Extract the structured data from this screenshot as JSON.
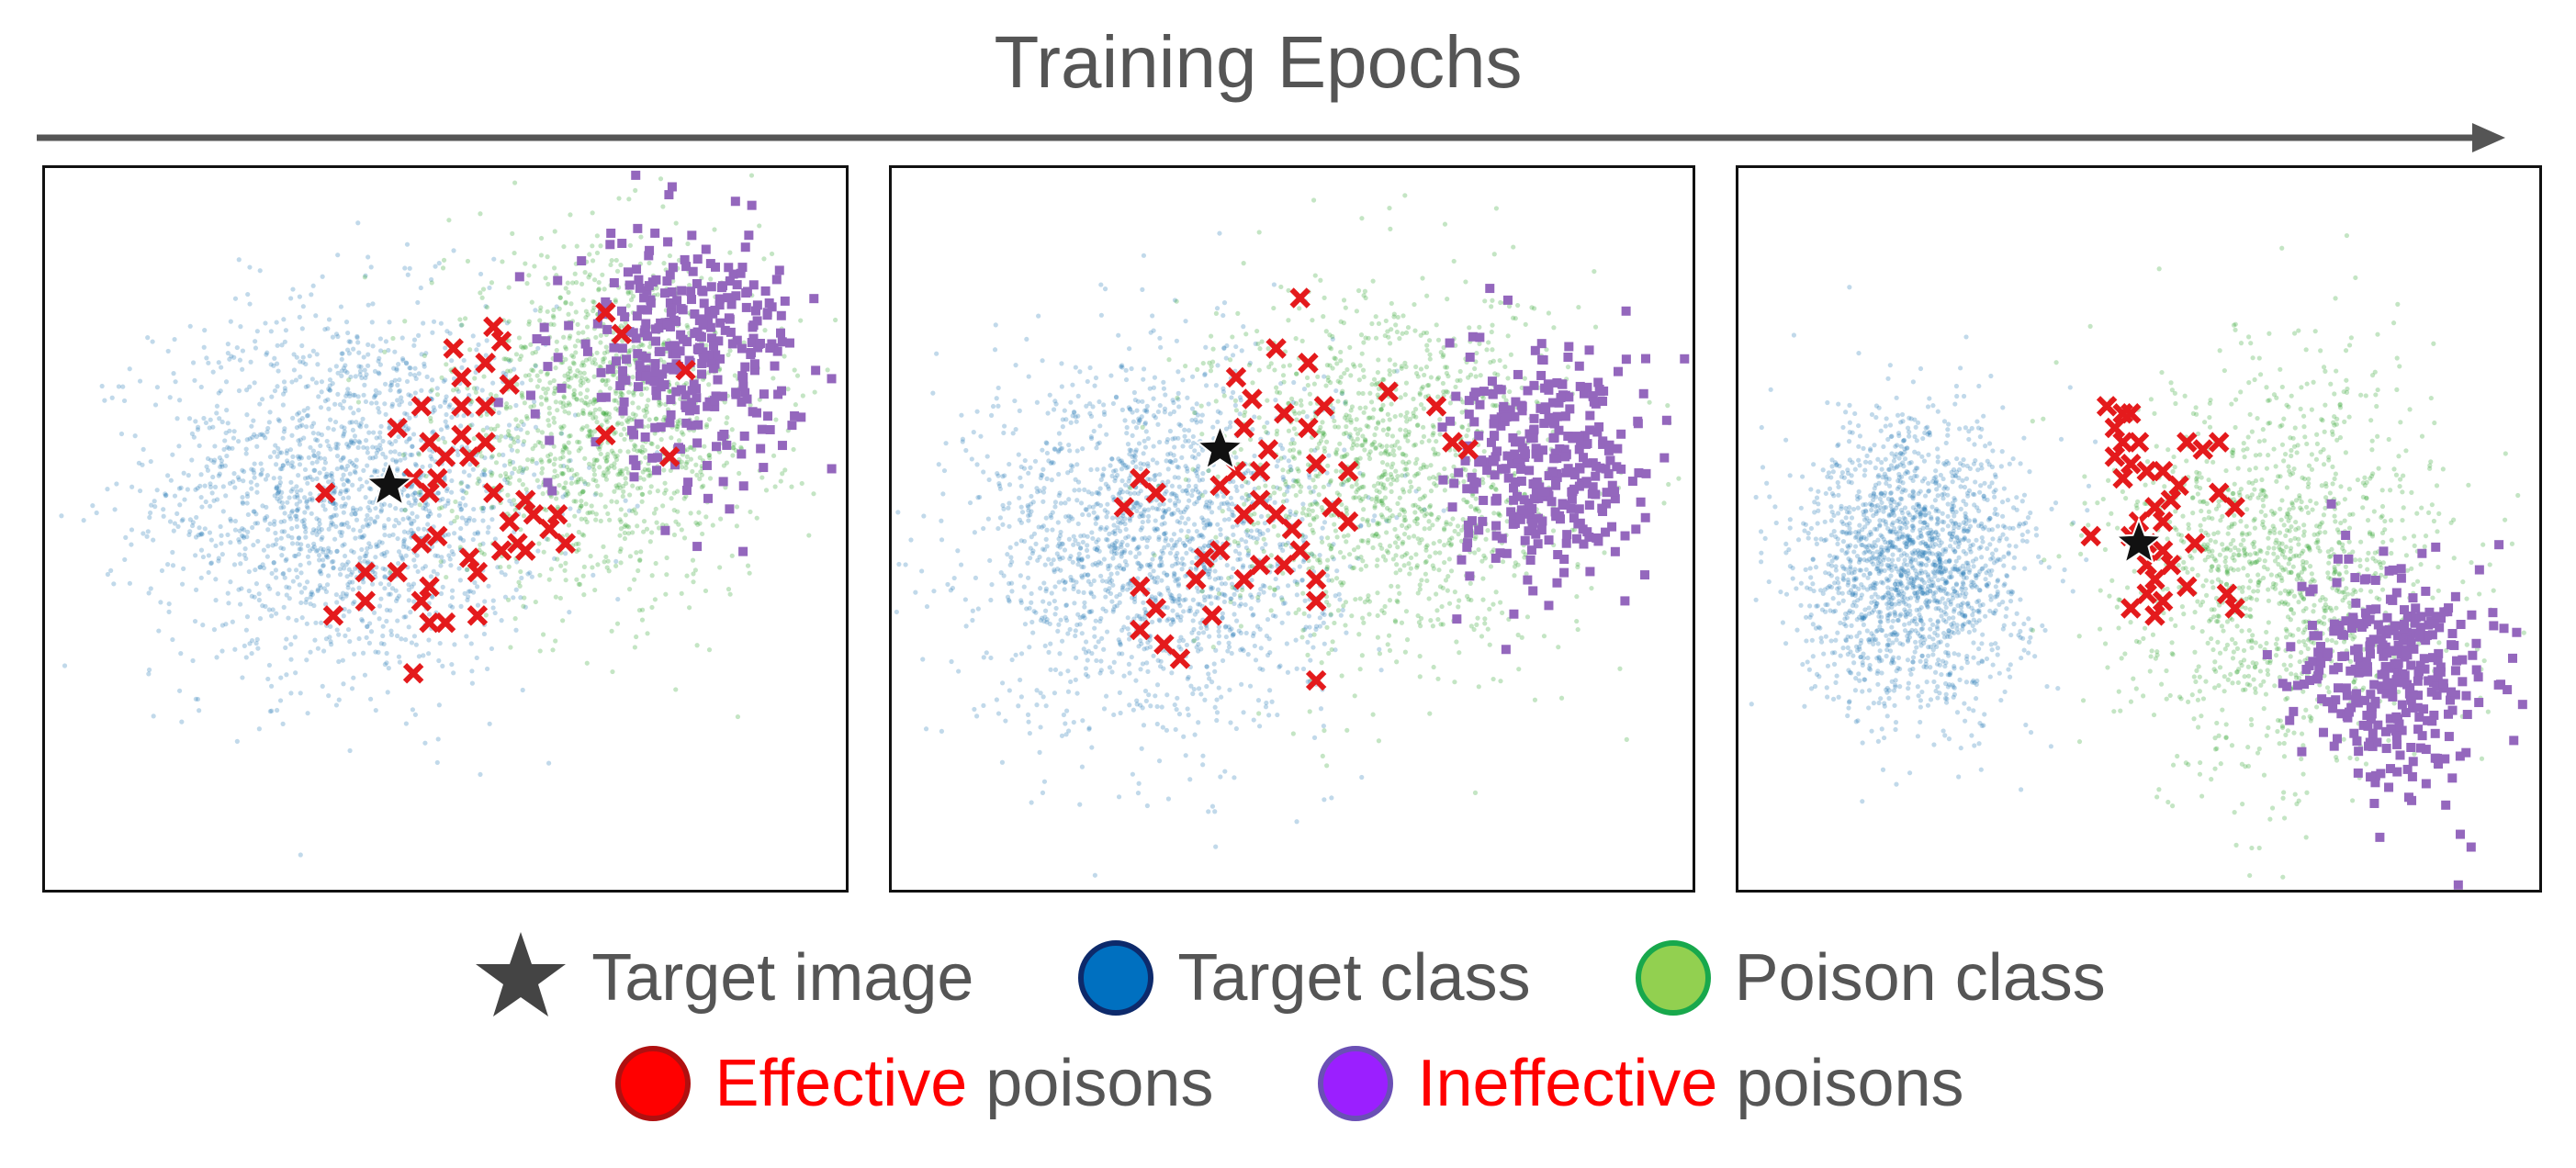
{
  "header": {
    "title": "Training Epochs"
  },
  "colors": {
    "target_class": "#1f77b4",
    "poison_class": "#2ca02c",
    "effective_poisons": "#e41a1c",
    "ineffective_poisons": "#9467bd",
    "target_image": "#111111",
    "highlight": "#ff0000",
    "text": "#555555"
  },
  "legend": {
    "target_image": "Target image",
    "target_class": "Target class",
    "poison_class": "Poison class",
    "effective_word": "Effective",
    "ineffective_word": "Ineffective",
    "poisons_word": "poisons"
  },
  "chart_data": [
    {
      "type": "scatter",
      "xlim": [
        0,
        100
      ],
      "ylim": [
        0,
        100
      ],
      "grid": false,
      "series": [
        {
          "name": "Target class",
          "marker": "dot",
          "clusters": [
            {
              "cx": 38,
              "cy": 55,
              "sx": 12,
              "sy": 13,
              "n": 1800
            }
          ]
        },
        {
          "name": "Poison class",
          "marker": "dot",
          "clusters": [
            {
              "cx": 70,
              "cy": 65,
              "sx": 10,
              "sy": 12,
              "n": 1300
            }
          ]
        },
        {
          "name": "Ineffective poisons",
          "marker": "square",
          "clusters": [
            {
              "cx": 80,
              "cy": 75,
              "sx": 7,
              "sy": 8,
              "n": 330
            }
          ]
        },
        {
          "name": "Effective poisons",
          "marker": "x",
          "points": [
            [
              56,
              78
            ],
            [
              57,
              76
            ],
            [
              51,
              75
            ],
            [
              55,
              73
            ],
            [
              52,
              71
            ],
            [
              58,
              70
            ],
            [
              47,
              67
            ],
            [
              52,
              67
            ],
            [
              55,
              67
            ],
            [
              52,
              63
            ],
            [
              48,
              62
            ],
            [
              55,
              62
            ],
            [
              50,
              60
            ],
            [
              53,
              60
            ],
            [
              46,
              57
            ],
            [
              49,
              57
            ],
            [
              48,
              55
            ],
            [
              56,
              55
            ],
            [
              60,
              54
            ],
            [
              61,
              52
            ],
            [
              58,
              51
            ],
            [
              64,
              52
            ],
            [
              63,
              50
            ],
            [
              59,
              48
            ],
            [
              57,
              47
            ],
            [
              60,
              47
            ],
            [
              49,
              49
            ],
            [
              47,
              48
            ],
            [
              53,
              46
            ],
            [
              54,
              44
            ],
            [
              40,
              44
            ],
            [
              44,
              44
            ],
            [
              48,
              42
            ],
            [
              47,
              40
            ],
            [
              48,
              37
            ],
            [
              50,
              37
            ],
            [
              40,
              40
            ],
            [
              36,
              38
            ],
            [
              46,
              30
            ],
            [
              54,
              38
            ],
            [
              35,
              55
            ],
            [
              44,
              64
            ],
            [
              70,
              80
            ],
            [
              72,
              77
            ],
            [
              80,
              72
            ],
            [
              78,
              60
            ],
            [
              70,
              63
            ],
            [
              65,
              48
            ]
          ]
        },
        {
          "name": "Target image",
          "marker": "star",
          "points": [
            [
              43,
              56
            ]
          ]
        }
      ]
    },
    {
      "type": "scatter",
      "xlim": [
        0,
        100
      ],
      "ylim": [
        0,
        100
      ],
      "grid": false,
      "series": [
        {
          "name": "Target class",
          "marker": "dot",
          "clusters": [
            {
              "cx": 33,
              "cy": 48,
              "sx": 11,
              "sy": 13,
              "n": 1800
            }
          ]
        },
        {
          "name": "Poison class",
          "marker": "dot",
          "clusters": [
            {
              "cx": 62,
              "cy": 58,
              "sx": 11,
              "sy": 13,
              "n": 1300
            }
          ]
        },
        {
          "name": "Ineffective poisons",
          "marker": "square",
          "clusters": [
            {
              "cx": 82,
              "cy": 58,
              "sx": 6,
              "sy": 8,
              "n": 330
            }
          ]
        },
        {
          "name": "Effective poisons",
          "marker": "x",
          "points": [
            [
              51,
              82
            ],
            [
              48,
              75
            ],
            [
              52,
              73
            ],
            [
              43,
              71
            ],
            [
              45,
              68
            ],
            [
              49,
              66
            ],
            [
              54,
              67
            ],
            [
              52,
              64
            ],
            [
              44,
              64
            ],
            [
              47,
              61
            ],
            [
              43,
              58
            ],
            [
              46,
              58
            ],
            [
              41,
              56
            ],
            [
              46,
              54
            ],
            [
              48,
              52
            ],
            [
              50,
              50
            ],
            [
              44,
              52
            ],
            [
              55,
              53
            ],
            [
              57,
              51
            ],
            [
              51,
              47
            ],
            [
              49,
              45
            ],
            [
              46,
              45
            ],
            [
              41,
              47
            ],
            [
              39,
              46
            ],
            [
              38,
              43
            ],
            [
              44,
              43
            ],
            [
              53,
              43
            ],
            [
              53,
              40
            ],
            [
              31,
              42
            ],
            [
              33,
              39
            ],
            [
              31,
              36
            ],
            [
              40,
              38
            ],
            [
              33,
              55
            ],
            [
              31,
              57
            ],
            [
              29,
              53
            ],
            [
              36,
              32
            ],
            [
              34,
              34
            ],
            [
              53,
              29
            ],
            [
              62,
              69
            ],
            [
              68,
              67
            ],
            [
              70,
              62
            ],
            [
              72,
              61
            ],
            [
              53,
              59
            ],
            [
              57,
              58
            ]
          ]
        },
        {
          "name": "Target image",
          "marker": "star",
          "points": [
            [
              41,
              61
            ]
          ]
        }
      ]
    },
    {
      "type": "scatter",
      "xlim": [
        0,
        100
      ],
      "ylim": [
        0,
        100
      ],
      "grid": false,
      "series": [
        {
          "name": "Target class",
          "marker": "dot",
          "clusters": [
            {
              "cx": 22,
              "cy": 45,
              "sx": 7,
              "sy": 10,
              "n": 1800
            }
          ]
        },
        {
          "name": "Poison class",
          "marker": "dot",
          "clusters": [
            {
              "cx": 68,
              "cy": 45,
              "sx": 10,
              "sy": 14,
              "n": 1300
            }
          ]
        },
        {
          "name": "Ineffective poisons",
          "marker": "square",
          "clusters": [
            {
              "cx": 82,
              "cy": 30,
              "sx": 6,
              "sy": 8,
              "n": 330
            }
          ]
        },
        {
          "name": "Effective poisons",
          "marker": "x",
          "points": [
            [
              46,
              67
            ],
            [
              48,
              66
            ],
            [
              49,
              66
            ],
            [
              47,
              64
            ],
            [
              48,
              62
            ],
            [
              50,
              62
            ],
            [
              47,
              60
            ],
            [
              49,
              59
            ],
            [
              51,
              58
            ],
            [
              48,
              57
            ],
            [
              53,
              58
            ],
            [
              56,
              62
            ],
            [
              58,
              61
            ],
            [
              60,
              62
            ],
            [
              55,
              56
            ],
            [
              54,
              54
            ],
            [
              52,
              53
            ],
            [
              53,
              51
            ],
            [
              50,
              51
            ],
            [
              49,
              49
            ],
            [
              51,
              48
            ],
            [
              53,
              47
            ],
            [
              51,
              45
            ],
            [
              54,
              45
            ],
            [
              52,
              43
            ],
            [
              51,
              41
            ],
            [
              49,
              39
            ],
            [
              52,
              38
            ],
            [
              60,
              55
            ],
            [
              62,
              53
            ],
            [
              57,
              48
            ],
            [
              61,
              41
            ],
            [
              62,
              39
            ],
            [
              44,
              49
            ],
            [
              56,
              42
            ],
            [
              53,
              40
            ]
          ]
        },
        {
          "name": "Target image",
          "marker": "star",
          "points": [
            [
              50,
              48
            ]
          ]
        }
      ]
    }
  ]
}
